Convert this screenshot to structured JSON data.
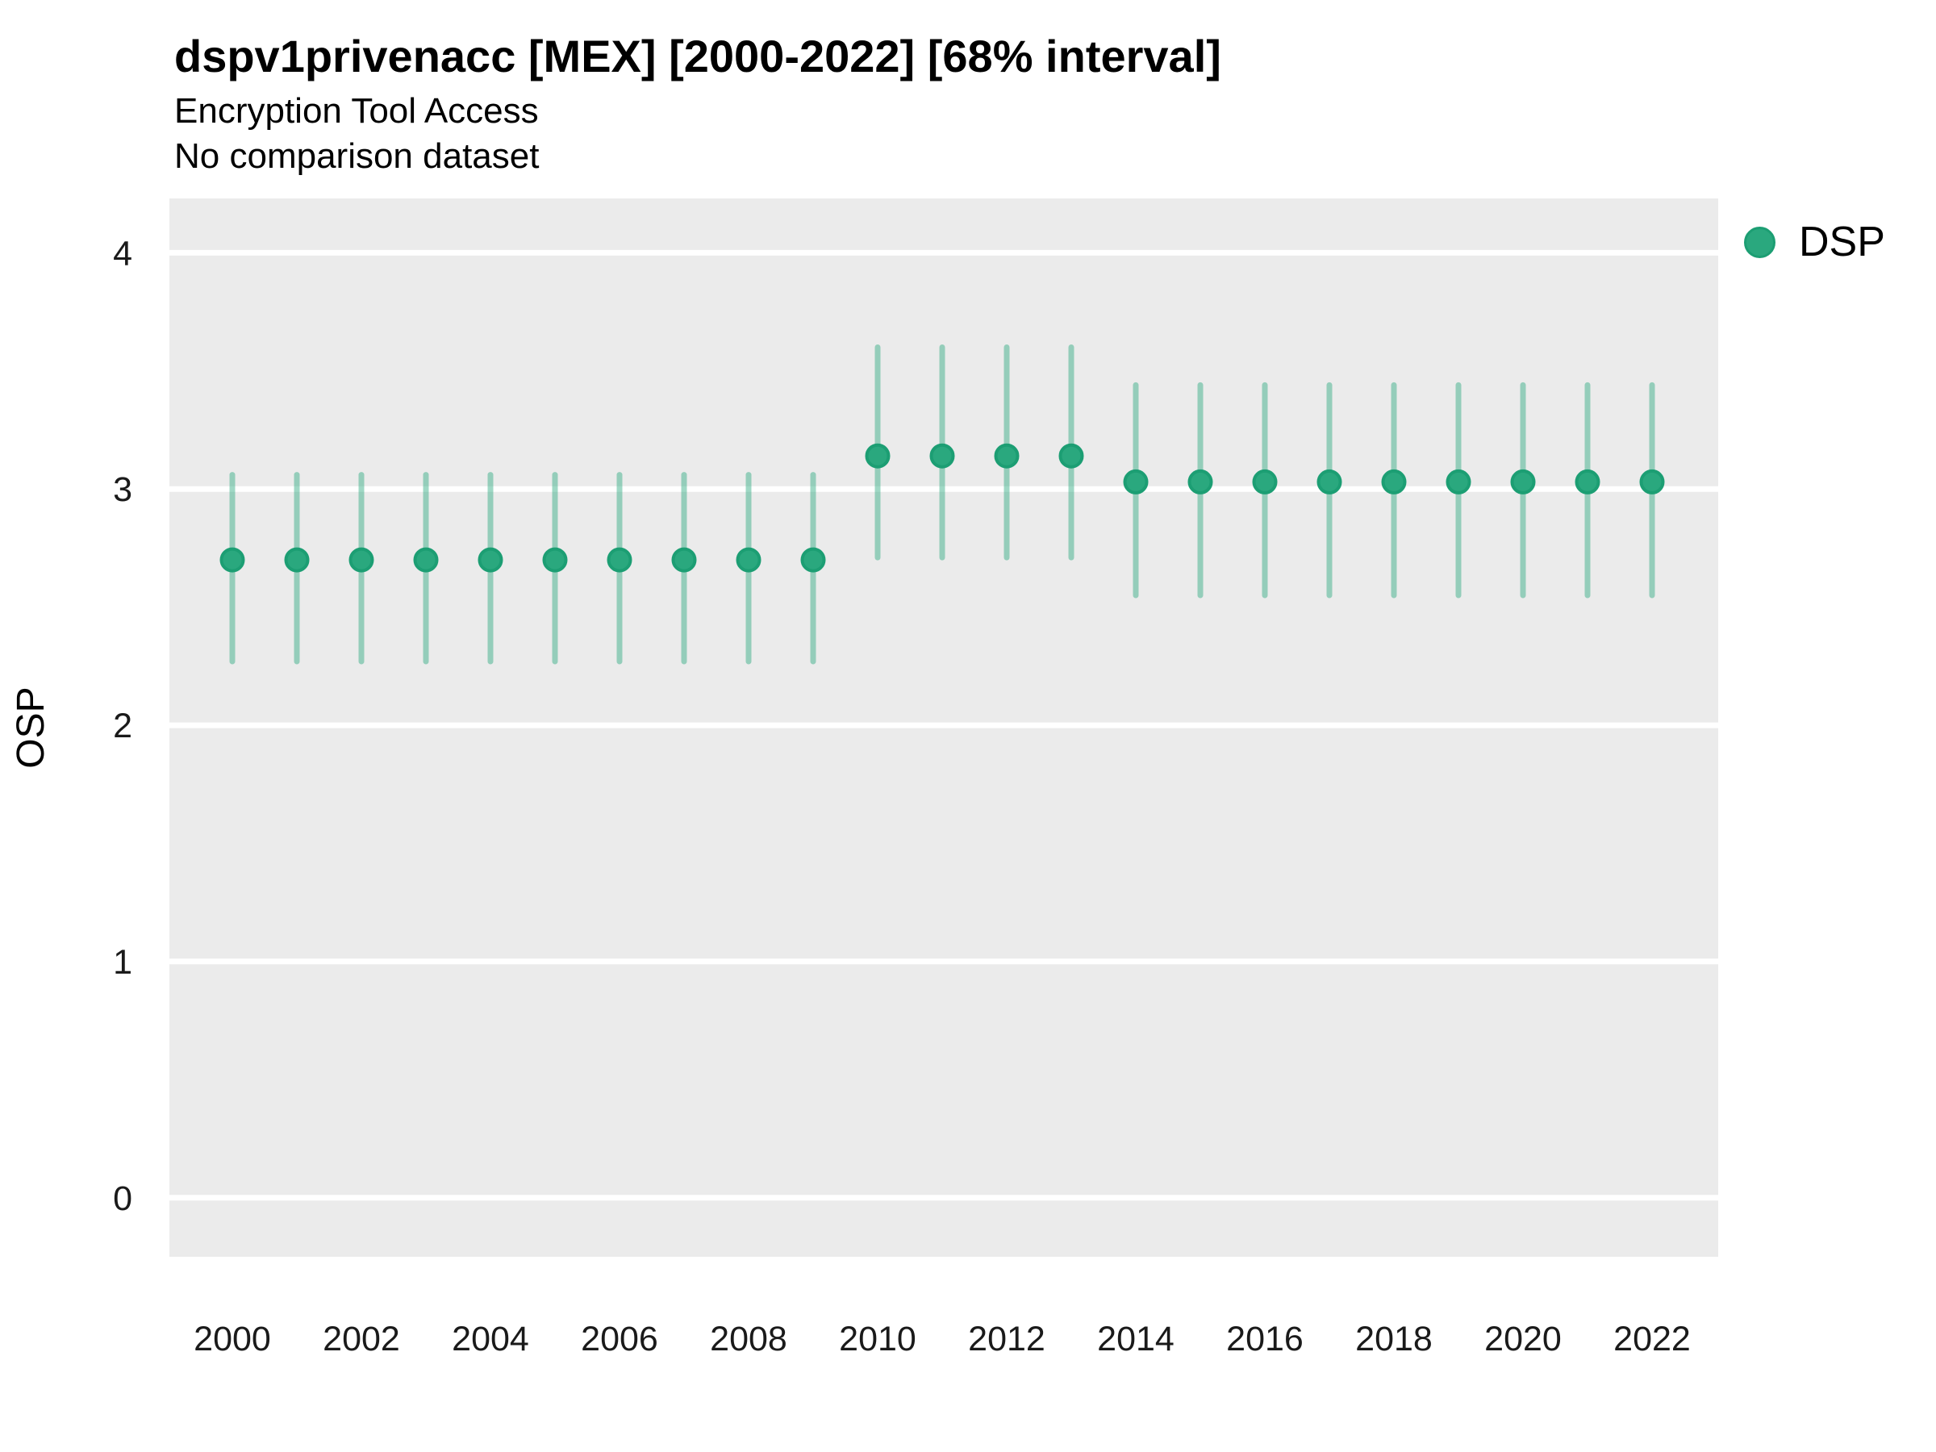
{
  "header": {
    "title": "dspv1privenacc [MEX] [2000-2022] [68% interval]",
    "subtitle": "Encryption Tool Access",
    "note": "No comparison dataset"
  },
  "axes": {
    "y_label": "OSP",
    "y_tick_labels": [
      "0",
      "1",
      "2",
      "3",
      "4"
    ],
    "x_tick_labels": [
      "2000",
      "2002",
      "2004",
      "2006",
      "2008",
      "2010",
      "2012",
      "2014",
      "2016",
      "2018",
      "2020",
      "2022"
    ]
  },
  "legend": {
    "position": "right-top",
    "items": [
      {
        "label": "DSP",
        "marker": "circle-icon",
        "color": "#2AA87E"
      }
    ]
  },
  "colors": {
    "panel_bg": "#EBEBEB",
    "gridline": "#FFFFFF",
    "point_fill": "#2AA87E",
    "point_stroke": "#1C9E73",
    "interval_bar": "rgba(42,168,126,0.45)",
    "text": "#1a1a1a"
  },
  "chart_data": {
    "type": "scatter",
    "title": "dspv1privenacc [MEX] [2000-2022] [68% interval]",
    "subtitle": "Encryption Tool Access",
    "note": "No comparison dataset",
    "interval": "68%",
    "xlabel": "",
    "ylabel": "OSP",
    "x": [
      2000,
      2001,
      2002,
      2003,
      2004,
      2005,
      2006,
      2007,
      2008,
      2009,
      2010,
      2011,
      2012,
      2013,
      2014,
      2015,
      2016,
      2017,
      2018,
      2019,
      2020,
      2021,
      2022
    ],
    "series": [
      {
        "name": "DSP",
        "values": [
          2.7,
          2.7,
          2.7,
          2.7,
          2.7,
          2.7,
          2.7,
          2.7,
          2.7,
          2.7,
          3.14,
          3.14,
          3.14,
          3.14,
          3.03,
          3.03,
          3.03,
          3.03,
          3.03,
          3.03,
          3.03,
          3.03,
          3.03
        ],
        "lower_68": [
          2.27,
          2.27,
          2.27,
          2.27,
          2.27,
          2.27,
          2.27,
          2.27,
          2.27,
          2.27,
          2.71,
          2.71,
          2.71,
          2.71,
          2.55,
          2.55,
          2.55,
          2.55,
          2.55,
          2.55,
          2.55,
          2.55,
          2.55
        ],
        "upper_68": [
          3.06,
          3.06,
          3.06,
          3.06,
          3.06,
          3.06,
          3.06,
          3.06,
          3.06,
          3.06,
          3.6,
          3.6,
          3.6,
          3.6,
          3.44,
          3.44,
          3.44,
          3.44,
          3.44,
          3.44,
          3.44,
          3.44,
          3.44
        ]
      }
    ],
    "xlim": [
      1999.025,
      2023.025
    ],
    "ylim": [
      -0.25,
      4.23
    ],
    "y_ticks": [
      0,
      1,
      2,
      3,
      4
    ],
    "x_ticks": [
      2000,
      2002,
      2004,
      2006,
      2008,
      2010,
      2012,
      2014,
      2016,
      2018,
      2020,
      2022
    ],
    "grid": "major-horizontal-white",
    "legend_position": "right-top"
  }
}
